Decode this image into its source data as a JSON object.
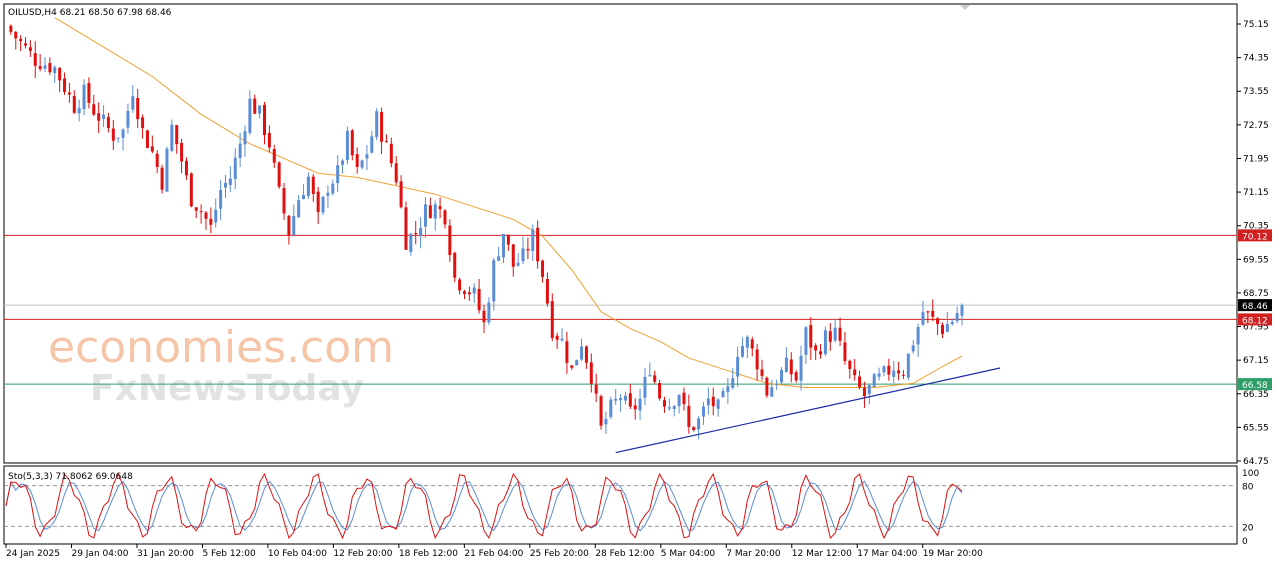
{
  "header": {
    "title": "OILUSD,H4  68.21 68.50 67.98 68.46",
    "stoch_title": "Sto(5,3,3) 71.8062 69.0648"
  },
  "watermark": {
    "line1": "economies.com",
    "line2": "FxNewsToday"
  },
  "colors": {
    "bull": "#5b8dd6",
    "bear": "#e01010",
    "ma": "#f0a030",
    "resistance": "#d02020",
    "support": "#2e9e6a",
    "trendline": "#1a2aa8",
    "stoch_main": "#e01010",
    "stoch_signal": "#5b8dd6"
  },
  "chart_data": {
    "type": "candlestick",
    "symbol": "OILUSD",
    "timeframe": "H4",
    "ohlc_last": {
      "open": 68.21,
      "high": 68.5,
      "low": 67.98,
      "close": 68.46
    },
    "ylim": [
      64.75,
      75.15
    ],
    "y_ticks": [
      "75.15",
      "74.35",
      "73.55",
      "72.75",
      "71.95",
      "71.15",
      "70.35",
      "69.55",
      "68.75",
      "67.95",
      "67.15",
      "66.35",
      "65.55",
      "64.75"
    ],
    "x_ticks": [
      "24 Jan 2025",
      "29 Jan 04:00",
      "31 Jan 20:00",
      "5 Feb 12:00",
      "10 Feb 04:00",
      "12 Feb 20:00",
      "18 Feb 12:00",
      "21 Feb 04:00",
      "25 Feb 20:00",
      "28 Feb 12:00",
      "5 Mar 04:00",
      "7 Mar 20:00",
      "12 Mar 12:00",
      "17 Mar 04:00",
      "19 Mar 20:00"
    ],
    "price_path": [
      [
        0,
        75.1
      ],
      [
        6,
        74.3
      ],
      [
        10,
        74.1
      ],
      [
        14,
        73.2
      ],
      [
        16,
        73.5
      ],
      [
        18,
        73.1
      ],
      [
        22,
        72.5
      ],
      [
        24,
        72.6
      ],
      [
        26,
        73.6
      ],
      [
        28,
        72.6
      ],
      [
        30,
        72.1
      ],
      [
        32,
        71.4
      ],
      [
        34,
        72.7
      ],
      [
        36,
        71.9
      ],
      [
        38,
        71.0
      ],
      [
        40,
        70.7
      ],
      [
        42,
        70.3
      ],
      [
        44,
        71.2
      ],
      [
        46,
        71.5
      ],
      [
        48,
        72.3
      ],
      [
        50,
        73.3
      ],
      [
        52,
        73.0
      ],
      [
        54,
        72.3
      ],
      [
        56,
        71.1
      ],
      [
        58,
        70.2
      ],
      [
        60,
        71.0
      ],
      [
        62,
        71.5
      ],
      [
        64,
        70.5
      ],
      [
        66,
        71.3
      ],
      [
        68,
        71.6
      ],
      [
        70,
        72.4
      ],
      [
        72,
        71.6
      ],
      [
        74,
        72.1
      ],
      [
        76,
        72.9
      ],
      [
        78,
        72.2
      ],
      [
        80,
        71.5
      ],
      [
        82,
        70.0
      ],
      [
        84,
        70.2
      ],
      [
        86,
        70.7
      ],
      [
        88,
        70.8
      ],
      [
        90,
        70.6
      ],
      [
        92,
        69.1
      ],
      [
        94,
        68.9
      ],
      [
        96,
        68.7
      ],
      [
        98,
        68.0
      ],
      [
        100,
        69.4
      ],
      [
        102,
        70.2
      ],
      [
        104,
        69.4
      ],
      [
        106,
        69.6
      ],
      [
        108,
        70.1
      ],
      [
        110,
        69.2
      ],
      [
        112,
        67.9
      ],
      [
        114,
        67.6
      ],
      [
        116,
        66.9
      ],
      [
        118,
        67.6
      ],
      [
        120,
        66.8
      ],
      [
        122,
        65.5
      ],
      [
        124,
        66.0
      ],
      [
        126,
        66.3
      ],
      [
        128,
        65.9
      ],
      [
        130,
        66.2
      ],
      [
        132,
        67.0
      ],
      [
        134,
        66.3
      ],
      [
        136,
        66.1
      ],
      [
        138,
        66.4
      ],
      [
        140,
        65.5
      ],
      [
        142,
        65.7
      ],
      [
        144,
        66.2
      ],
      [
        146,
        66.0
      ],
      [
        148,
        66.4
      ],
      [
        150,
        67.4
      ],
      [
        152,
        67.6
      ],
      [
        154,
        67.1
      ],
      [
        156,
        66.4
      ],
      [
        158,
        66.7
      ],
      [
        160,
        67.0
      ],
      [
        162,
        66.7
      ],
      [
        164,
        67.8
      ],
      [
        166,
        67.3
      ],
      [
        168,
        67.7
      ],
      [
        170,
        67.8
      ],
      [
        172,
        67.1
      ],
      [
        174,
        66.6
      ],
      [
        176,
        66.3
      ],
      [
        178,
        66.6
      ],
      [
        180,
        66.8
      ],
      [
        182,
        67.0
      ],
      [
        184,
        66.9
      ],
      [
        186,
        67.6
      ],
      [
        188,
        68.3
      ],
      [
        190,
        68.1
      ],
      [
        192,
        67.9
      ],
      [
        194,
        68.1
      ],
      [
        196,
        68.46
      ]
    ],
    "moving_average": [
      [
        10,
        75.3
      ],
      [
        20,
        74.6
      ],
      [
        30,
        73.9
      ],
      [
        40,
        73.0
      ],
      [
        50,
        72.3
      ],
      [
        58,
        71.9
      ],
      [
        64,
        71.6
      ],
      [
        72,
        71.5
      ],
      [
        80,
        71.3
      ],
      [
        88,
        71.1
      ],
      [
        96,
        70.8
      ],
      [
        104,
        70.5
      ],
      [
        110,
        70.1
      ],
      [
        116,
        69.3
      ],
      [
        122,
        68.3
      ],
      [
        128,
        67.9
      ],
      [
        134,
        67.6
      ],
      [
        140,
        67.2
      ],
      [
        148,
        66.9
      ],
      [
        156,
        66.6
      ],
      [
        164,
        66.5
      ],
      [
        172,
        66.5
      ],
      [
        178,
        66.5
      ],
      [
        186,
        66.6
      ],
      [
        192,
        67.0
      ],
      [
        196,
        67.25
      ]
    ],
    "horizontal_levels": [
      {
        "value": 70.12,
        "label": "70.12",
        "color_key": "resistance"
      },
      {
        "value": 68.12,
        "label": "68.12",
        "color_key": "resistance"
      },
      {
        "value": 66.58,
        "label": "66.58",
        "color_key": "support"
      }
    ],
    "current_price": {
      "value": 68.46,
      "label": "68.46"
    },
    "trendline": {
      "from": [
        125,
        64.95
      ],
      "to": [
        196,
        66.82
      ]
    },
    "stochastic": {
      "params": "5,3,3",
      "main": 71.8062,
      "signal": 69.0648,
      "levels": [
        80,
        20
      ],
      "scale_labels": [
        "100",
        "80",
        "20",
        "0"
      ]
    }
  }
}
